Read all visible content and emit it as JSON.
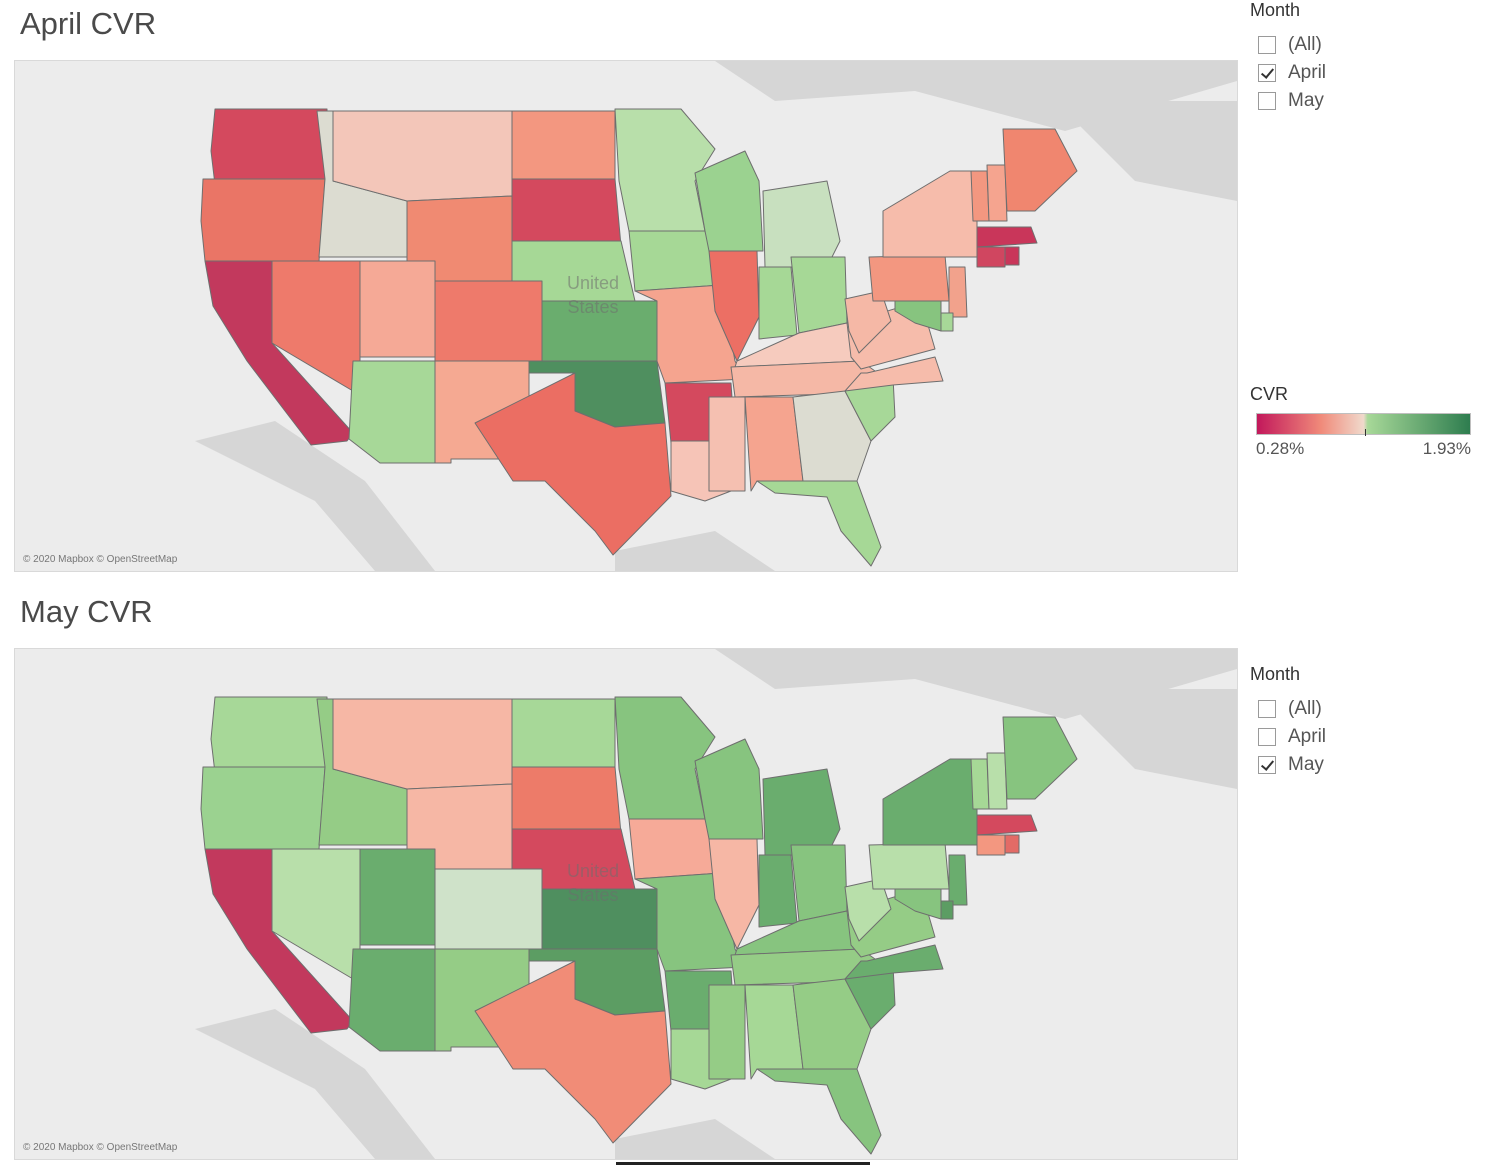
{
  "panels": [
    {
      "title": "April CVR",
      "country_label": [
        "United",
        "States"
      ],
      "attribution": "© 2020 Mapbox © OpenStreetMap",
      "states": {
        "WA": "#d4495e",
        "OR": "#ea7566",
        "CA": "#c2395d",
        "ID": "#dcdcd1",
        "NV": "#ee7a6b",
        "MT": "#f3c6b9",
        "WY": "#f08a72",
        "UT": "#f5a996",
        "CO": "#ee7a6b",
        "AZ": "#a7d898",
        "NM": "#f5a992",
        "ND": "#f39780",
        "SD": "#d4495e",
        "NE": "#a6d896",
        "KS": "#6aad6e",
        "OK": "#4f8f5f",
        "TX": "#eb6e63",
        "MN": "#b8dfaa",
        "IA": "#a6d896",
        "MO": "#f5a48f",
        "AR": "#d4495e",
        "LA": "#f6c4b7",
        "WI": "#9bd290",
        "IL": "#ec6f64",
        "MI": "#c8e0bf",
        "IN": "#a6d896",
        "OH": "#a6d896",
        "KY": "#f6cbbe",
        "TN": "#f5b8a6",
        "MS": "#f5c0b1",
        "AL": "#f5a48f",
        "GA": "#dcdcd1",
        "FL": "#a6d896",
        "SC": "#a7d898",
        "NC": "#f6bcab",
        "VA": "#f6bcab",
        "WV": "#f5b8a6",
        "PA": "#f39780",
        "NY": "#f6bcab",
        "NJ": "#f2a28c",
        "DE": "#a7d898",
        "MD": "#87c47f",
        "VT": "#f39780",
        "NH": "#f5a48f",
        "ME": "#f0866f",
        "MA": "#c9365a",
        "CT": "#d04660",
        "RI": "#c9365a"
      }
    },
    {
      "title": "May CVR",
      "country_label": [
        "United",
        "States"
      ],
      "attribution": "© 2020 Mapbox © OpenStreetMap",
      "states": {
        "WA": "#a7d898",
        "OR": "#9bd290",
        "CA": "#c2395d",
        "ID": "#95cc86",
        "NV": "#b8dfaa",
        "MT": "#f6b7a5",
        "WY": "#f6b7a5",
        "UT": "#6aad6e",
        "CO": "#cfe2c9",
        "AZ": "#6aad6e",
        "NM": "#95cc86",
        "ND": "#a7d898",
        "SD": "#ed7b69",
        "NE": "#d4495e",
        "KS": "#4f8f5f",
        "OK": "#5c9d63",
        "TX": "#f18c77",
        "MN": "#87c47f",
        "IA": "#f6aa98",
        "MO": "#87c47f",
        "AR": "#6aad6e",
        "LA": "#a6d896",
        "WI": "#87c47f",
        "IL": "#f6b7a5",
        "MI": "#6aad6e",
        "IN": "#6aad6e",
        "OH": "#87c47f",
        "KY": "#87c47f",
        "TN": "#95cc86",
        "MS": "#95cc86",
        "AL": "#a6d896",
        "GA": "#95cc86",
        "FL": "#87c47f",
        "SC": "#6aad6e",
        "NC": "#6aad6e",
        "VA": "#95cc86",
        "WV": "#b8dfaa",
        "PA": "#b8dfaa",
        "NY": "#6aad6e",
        "NJ": "#6aad6e",
        "DE": "#5c9d63",
        "MD": "#87c47f",
        "VT": "#a6d896",
        "NH": "#b8dfaa",
        "ME": "#87c47f",
        "MA": "#d4495e",
        "CT": "#f39780",
        "RI": "#e36b66"
      }
    }
  ],
  "filters": [
    {
      "title": "Month",
      "options": [
        {
          "label": "(All)",
          "checked": false
        },
        {
          "label": "April",
          "checked": true
        },
        {
          "label": "May",
          "checked": false
        }
      ]
    },
    {
      "title": "Month",
      "options": [
        {
          "label": "(All)",
          "checked": false
        },
        {
          "label": "April",
          "checked": false
        },
        {
          "label": "May",
          "checked": true
        }
      ]
    }
  ],
  "legend": {
    "title": "CVR",
    "min_label": "0.28%",
    "max_label": "1.93%",
    "colors": {
      "low": "#c2185b",
      "low_mid": "#f08a7a",
      "neutral": "#f0d9cc",
      "high_mid": "#a7d898",
      "high": "#2e7d4f"
    }
  },
  "map_colors": {
    "land": "#d6d6d6",
    "water": "#ececec",
    "border": "#6e6e6e"
  }
}
